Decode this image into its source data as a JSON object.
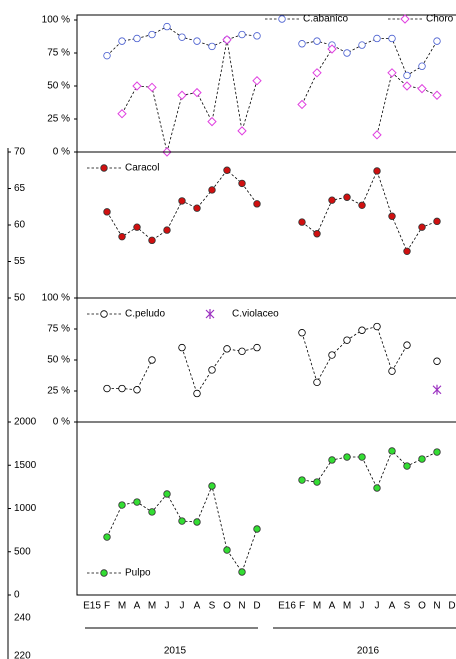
{
  "chart_data": [
    {
      "type": "line",
      "ylim": [
        0,
        100
      ],
      "legend": "upper right",
      "yticks": [
        {
          "value": 100,
          "label": "100 %"
        },
        {
          "value": 75,
          "label": "75 %"
        },
        {
          "value": 50,
          "label": "50 %"
        },
        {
          "value": 25,
          "label": "25 %"
        },
        {
          "value": 0,
          "label": "0 %"
        }
      ],
      "series": [
        {
          "name": "C.abanico",
          "color": "#4a5fd0",
          "marker": "circle",
          "filled": false,
          "values": [
            null,
            73,
            84,
            86,
            89,
            95,
            87,
            84,
            80,
            85,
            89,
            88,
            null,
            null,
            82,
            84,
            81,
            75,
            81,
            86,
            86,
            58,
            65,
            84,
            null
          ]
        },
        {
          "name": "Choro",
          "color": "#e040e0",
          "marker": "diamond",
          "filled": false,
          "values": [
            null,
            null,
            29,
            50,
            49,
            0,
            43,
            45,
            23,
            85,
            16,
            54,
            null,
            null,
            36,
            60,
            78,
            null,
            null,
            13,
            60,
            50,
            48,
            43,
            null
          ]
        }
      ]
    },
    {
      "type": "line",
      "ylim": [
        50,
        70
      ],
      "yticks": [
        70,
        65,
        60,
        55,
        50
      ],
      "legend": "upper left",
      "series": [
        {
          "name": "Caracol",
          "color": "#d01010",
          "marker": "circle",
          "filled": true,
          "values": [
            null,
            61.8,
            58.4,
            59.7,
            57.9,
            59.3,
            63.3,
            62.3,
            64.8,
            67.5,
            65.7,
            62.9,
            null,
            null,
            60.4,
            58.8,
            63.4,
            63.8,
            62.7,
            67.4,
            61.2,
            56.4,
            59.7,
            60.5,
            null
          ]
        }
      ]
    },
    {
      "type": "line",
      "ylim": [
        0,
        100
      ],
      "legend": "upper left",
      "yticks": [
        {
          "value": 100,
          "label": "100 %"
        },
        {
          "value": 75,
          "label": "75 %"
        },
        {
          "value": 50,
          "label": "50 %"
        },
        {
          "value": 25,
          "label": "25 %"
        },
        {
          "value": 0,
          "label": "0 %"
        }
      ],
      "series": [
        {
          "name": "C.peludo",
          "color": "#000000",
          "marker": "circle",
          "filled": false,
          "values": [
            null,
            27,
            27,
            26,
            50,
            null,
            60,
            23,
            42,
            59,
            57,
            60,
            null,
            null,
            72,
            32,
            54,
            66,
            74,
            77,
            41,
            62,
            null,
            49,
            null
          ]
        },
        {
          "name": "C.violaceo",
          "color": "#9b30c0",
          "marker": "asterisk",
          "filled": false,
          "values": [
            null,
            null,
            null,
            null,
            null,
            null,
            null,
            null,
            null,
            null,
            null,
            null,
            null,
            null,
            null,
            null,
            null,
            null,
            null,
            null,
            null,
            null,
            null,
            26,
            null
          ]
        }
      ]
    },
    {
      "type": "line",
      "ylim": [
        0,
        2000
      ],
      "yticks": [
        2000,
        1500,
        1000,
        500,
        0
      ],
      "legend": "lower left",
      "extra_ticks": [
        240,
        220
      ],
      "categories": [
        "E15",
        "F",
        "M",
        "A",
        "M",
        "J",
        "J",
        "A",
        "S",
        "O",
        "N",
        "D",
        null,
        "E16",
        "F",
        "M",
        "A",
        "M",
        "J",
        "J",
        "A",
        "S",
        "O",
        "N",
        "D"
      ],
      "groups": [
        "2015",
        "2016"
      ],
      "series": [
        {
          "name": "Pulpo",
          "color": "#33dd33",
          "marker": "circle",
          "filled": true,
          "values": [
            null,
            670,
            1040,
            1075,
            960,
            1168,
            855,
            844,
            1260,
            520,
            266,
            763,
            null,
            null,
            1329,
            1306,
            1561,
            1595,
            1595,
            1237,
            1665,
            1491,
            1572,
            1653,
            null
          ]
        }
      ]
    }
  ]
}
